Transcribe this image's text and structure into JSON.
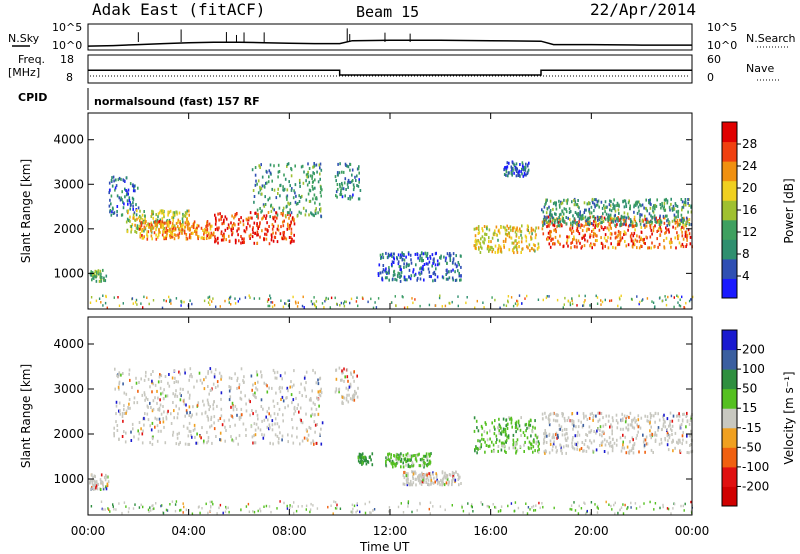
{
  "header": {
    "station": "Adak East (fitACF)",
    "beam": "Beam 15",
    "date": "22/Apr/2014"
  },
  "chart_data": [
    {
      "type": "line",
      "panel": "noise",
      "left_label": "N.Sky",
      "right_label": "N.Search",
      "left_ticks": [
        "10^5",
        "10^0"
      ],
      "right_ticks": [
        "10^5",
        "10^0"
      ],
      "x_hours": [
        0,
        1,
        2,
        3,
        4,
        5,
        6,
        7,
        8,
        9,
        10,
        10.5,
        12,
        14,
        16,
        18,
        18.5,
        20,
        22,
        24
      ],
      "n_sky_log": [
        0.2,
        0.25,
        0.35,
        0.45,
        0.55,
        0.6,
        0.6,
        0.55,
        0.5,
        0.45,
        0.45,
        0.75,
        0.8,
        0.8,
        0.75,
        0.7,
        0.35,
        0.35,
        0.3,
        0.3
      ],
      "ylim": [
        0,
        5
      ]
    },
    {
      "type": "line",
      "panel": "frequency",
      "left_label_1": "Freq.",
      "left_label_2": "[MHz]",
      "right_label": "Nave",
      "left_ticks": [
        "18",
        "8"
      ],
      "right_ticks": [
        "60",
        "0"
      ],
      "freq_segments": [
        {
          "from_h": 0,
          "to_h": 10,
          "mhz": 12.5
        },
        {
          "from_h": 10,
          "to_h": 18,
          "mhz": 10.5
        },
        {
          "from_h": 18,
          "to_h": 24,
          "mhz": 12.5
        }
      ],
      "ylim": [
        8,
        18
      ]
    },
    {
      "type": "text",
      "panel": "cpid",
      "label": "CPID",
      "program": "normalsound (fast) 157 RF"
    },
    {
      "type": "heatmap",
      "panel": "power",
      "ylabel": "Slant Range [km]",
      "yticks": [
        1000,
        2000,
        3000,
        4000
      ],
      "ylim": [
        200,
        4600
      ],
      "xlim": [
        0,
        24
      ],
      "colorbar": {
        "label": "Power [dB]",
        "ticks": [
          "4",
          "8",
          "12",
          "16",
          "20",
          "24",
          "28"
        ],
        "range": [
          0,
          30
        ],
        "colors": [
          "#1a1aff",
          "#2f4fb3",
          "#2f8f6f",
          "#3fa060",
          "#9fc030",
          "#f0d020",
          "#f09010",
          "#f04010",
          "#e00000"
        ]
      },
      "bands": [
        {
          "h0": 0.0,
          "h1": 0.7,
          "r0": 850,
          "r1": 1100,
          "level": 12
        },
        {
          "h0": 0.8,
          "h1": 2.0,
          "r0": 2300,
          "r1": 3200,
          "level": 6
        },
        {
          "h0": 1.5,
          "h1": 4.0,
          "r0": 1950,
          "r1": 2450,
          "level": 16
        },
        {
          "h0": 2.0,
          "h1": 5.0,
          "r0": 1800,
          "r1": 2200,
          "level": 22
        },
        {
          "h0": 5.0,
          "h1": 8.2,
          "r0": 1700,
          "r1": 2400,
          "level": 26
        },
        {
          "h0": 6.5,
          "h1": 9.3,
          "r0": 2300,
          "r1": 3500,
          "level": 10
        },
        {
          "h0": 9.8,
          "h1": 10.8,
          "r0": 2700,
          "r1": 3500,
          "level": 8
        },
        {
          "h0": 11.5,
          "h1": 14.8,
          "r0": 850,
          "r1": 1500,
          "level": 6
        },
        {
          "h0": 15.3,
          "h1": 17.9,
          "r0": 1500,
          "r1": 2100,
          "level": 18
        },
        {
          "h0": 16.5,
          "h1": 17.5,
          "r0": 3200,
          "r1": 3550,
          "level": 6
        },
        {
          "h0": 18.0,
          "h1": 24.0,
          "r0": 1600,
          "r1": 2300,
          "level": 24
        },
        {
          "h0": 18.0,
          "h1": 24.0,
          "r0": 2100,
          "r1": 2700,
          "level": 10
        }
      ]
    },
    {
      "type": "heatmap",
      "panel": "velocity",
      "ylabel": "Slant Range [km]",
      "yticks": [
        1000,
        2000,
        3000,
        4000
      ],
      "ylim": [
        200,
        4600
      ],
      "xlim": [
        0,
        24
      ],
      "xticks": [
        "00:00",
        "04:00",
        "08:00",
        "12:00",
        "16:00",
        "20:00",
        "00:00"
      ],
      "xlabel": "Time UT",
      "colorbar": {
        "label": "Velocity [m s⁻¹]",
        "ticks": [
          "200",
          "100",
          "50",
          "15",
          "-15",
          "-50",
          "-100",
          "-200"
        ],
        "colors": [
          "#1a1acf",
          "#3b5fa0",
          "#2f8f3f",
          "#55c020",
          "#c8c8c0",
          "#f0a020",
          "#f06010",
          "#e01010",
          "#d00000"
        ]
      },
      "bands": [
        {
          "h0": 0.0,
          "h1": 0.8,
          "r0": 800,
          "r1": 1150,
          "kind": "low"
        },
        {
          "h0": 1.0,
          "h1": 9.3,
          "r0": 1800,
          "r1": 3500,
          "kind": "low"
        },
        {
          "h0": 9.8,
          "h1": 10.7,
          "r0": 2700,
          "r1": 3500,
          "kind": "low"
        },
        {
          "h0": 10.7,
          "h1": 11.3,
          "r0": 1350,
          "r1": 1600,
          "kind": "pos_mid"
        },
        {
          "h0": 11.8,
          "h1": 13.6,
          "r0": 1300,
          "r1": 1600,
          "kind": "pos_small"
        },
        {
          "h0": 12.5,
          "h1": 14.8,
          "r0": 900,
          "r1": 1200,
          "kind": "low"
        },
        {
          "h0": 15.3,
          "h1": 17.9,
          "r0": 1600,
          "r1": 2400,
          "kind": "pos_small"
        },
        {
          "h0": 18.0,
          "h1": 24.0,
          "r0": 1600,
          "r1": 2500,
          "kind": "low"
        }
      ]
    }
  ]
}
